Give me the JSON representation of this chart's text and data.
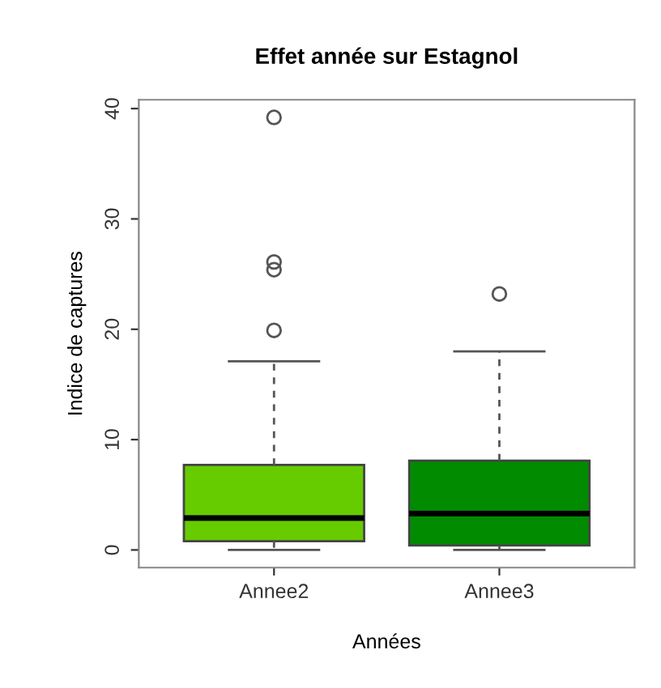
{
  "chart_data": {
    "type": "box",
    "title": "Effet année sur Estagnol",
    "xlabel": "Années",
    "ylabel": "Indice de captures",
    "categories": [
      "Annee2",
      "Annee3"
    ],
    "colors": [
      "#66cc00",
      "#008b00"
    ],
    "boxes": [
      {
        "low": 0,
        "q1": 0.8,
        "median": 2.9,
        "q3": 7.7,
        "high": 17.1,
        "outliers": [
          19.9,
          25.4,
          26.1,
          39.2
        ]
      },
      {
        "low": 0,
        "q1": 0.4,
        "median": 3.3,
        "q3": 8.1,
        "high": 18.0,
        "outliers": [
          23.2
        ]
      }
    ],
    "ylim": [
      -1.6,
      40.8
    ],
    "yticks": [
      0,
      10,
      20,
      30,
      40
    ],
    "grid": false
  }
}
